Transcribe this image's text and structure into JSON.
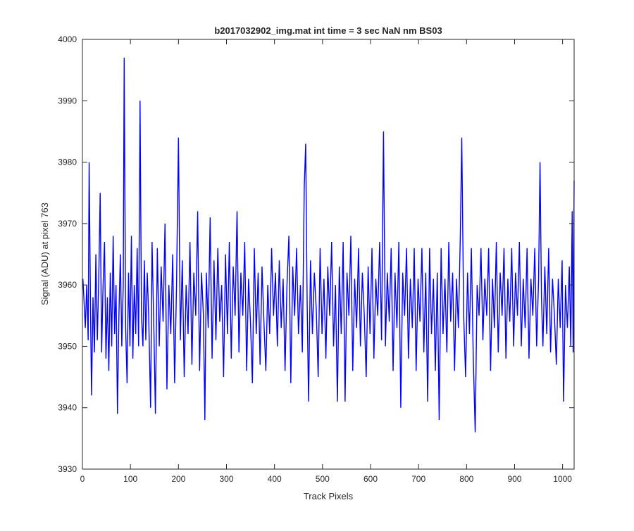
{
  "figure": {
    "title": "b2017032902_img.mat int time = 3 sec  NaN nm BS03",
    "xlabel": "Track Pixels",
    "ylabel": "Signal (ADU) at pixel 763"
  },
  "chart_data": {
    "type": "line",
    "title": "b2017032902_img.mat int time = 3 sec  NaN nm BS03",
    "xlabel": "Track Pixels",
    "ylabel": "Signal (ADU) at pixel 763",
    "xlim": [
      0,
      1024
    ],
    "ylim": [
      3930,
      4000
    ],
    "xticks": [
      0,
      100,
      200,
      300,
      400,
      500,
      600,
      700,
      800,
      900,
      1000
    ],
    "yticks": [
      3930,
      3940,
      3950,
      3960,
      3970,
      3980,
      3990,
      4000
    ],
    "grid": false,
    "legend": "none",
    "series": [
      {
        "color": "#0000ff",
        "x_start": 1,
        "x_step": 1,
        "points": [
          [
            1,
            3961
          ],
          [
            3,
            3958
          ],
          [
            6,
            3953
          ],
          [
            9,
            3960
          ],
          [
            12,
            3951
          ],
          [
            14,
            3980
          ],
          [
            17,
            3955
          ],
          [
            19,
            3942
          ],
          [
            22,
            3958
          ],
          [
            25,
            3949
          ],
          [
            28,
            3965
          ],
          [
            31,
            3951
          ],
          [
            34,
            3961
          ],
          [
            37,
            3975
          ],
          [
            40,
            3949
          ],
          [
            43,
            3960
          ],
          [
            46,
            3967
          ],
          [
            49,
            3948
          ],
          [
            52,
            3958
          ],
          [
            55,
            3946
          ],
          [
            58,
            3962
          ],
          [
            61,
            3950
          ],
          [
            64,
            3968
          ],
          [
            67,
            3952
          ],
          [
            70,
            3960
          ],
          [
            73,
            3939
          ],
          [
            76,
            3955
          ],
          [
            79,
            3965
          ],
          [
            82,
            3950
          ],
          [
            85,
            3960
          ],
          [
            87,
            3997
          ],
          [
            90,
            3953
          ],
          [
            93,
            3944
          ],
          [
            96,
            3962
          ],
          [
            99,
            3950
          ],
          [
            102,
            3968
          ],
          [
            105,
            3948
          ],
          [
            108,
            3960
          ],
          [
            111,
            3952
          ],
          [
            114,
            3966
          ],
          [
            117,
            3950
          ],
          [
            120,
            3990
          ],
          [
            123,
            3955
          ],
          [
            126,
            3950
          ],
          [
            129,
            3964
          ],
          [
            132,
            3951
          ],
          [
            135,
            3962
          ],
          [
            138,
            3955
          ],
          [
            142,
            3940
          ],
          [
            145,
            3967
          ],
          [
            149,
            3952
          ],
          [
            152,
            3939
          ],
          [
            156,
            3966
          ],
          [
            160,
            3950
          ],
          [
            164,
            3963
          ],
          [
            168,
            3954
          ],
          [
            172,
            3970
          ],
          [
            176,
            3943
          ],
          [
            180,
            3960
          ],
          [
            184,
            3952
          ],
          [
            188,
            3965
          ],
          [
            192,
            3944
          ],
          [
            196,
            3960
          ],
          [
            200,
            3984
          ],
          [
            204,
            3951
          ],
          [
            208,
            3964
          ],
          [
            212,
            3945
          ],
          [
            216,
            3960
          ],
          [
            220,
            3952
          ],
          [
            224,
            3967
          ],
          [
            228,
            3947
          ],
          [
            232,
            3962
          ],
          [
            236,
            3955
          ],
          [
            240,
            3972
          ],
          [
            244,
            3946
          ],
          [
            248,
            3962
          ],
          [
            252,
            3955
          ],
          [
            255,
            3938
          ],
          [
            258,
            3962
          ],
          [
            262,
            3953
          ],
          [
            266,
            3971
          ],
          [
            270,
            3948
          ],
          [
            274,
            3964
          ],
          [
            278,
            3951
          ],
          [
            282,
            3966
          ],
          [
            286,
            3954
          ],
          [
            290,
            3960
          ],
          [
            294,
            3945
          ],
          [
            298,
            3965
          ],
          [
            302,
            3952
          ],
          [
            306,
            3967
          ],
          [
            310,
            3948
          ],
          [
            314,
            3963
          ],
          [
            318,
            3955
          ],
          [
            322,
            3972
          ],
          [
            326,
            3949
          ],
          [
            330,
            3962
          ],
          [
            334,
            3955
          ],
          [
            338,
            3967
          ],
          [
            342,
            3946
          ],
          [
            346,
            3961
          ],
          [
            350,
            3954
          ],
          [
            354,
            3944
          ],
          [
            358,
            3966
          ],
          [
            362,
            3952
          ],
          [
            366,
            3962
          ],
          [
            370,
            3947
          ],
          [
            374,
            3963
          ],
          [
            378,
            3954
          ],
          [
            382,
            3946
          ],
          [
            386,
            3960
          ],
          [
            390,
            3952
          ],
          [
            394,
            3966
          ],
          [
            398,
            3955
          ],
          [
            402,
            3962
          ],
          [
            406,
            3950
          ],
          [
            410,
            3964
          ],
          [
            414,
            3953
          ],
          [
            418,
            3961
          ],
          [
            422,
            3946
          ],
          [
            426,
            3960
          ],
          [
            430,
            3968
          ],
          [
            434,
            3944
          ],
          [
            438,
            3963
          ],
          [
            442,
            3955
          ],
          [
            446,
            3966
          ],
          [
            450,
            3952
          ],
          [
            454,
            3960
          ],
          [
            458,
            3949
          ],
          [
            462,
            3976
          ],
          [
            465,
            3983
          ],
          [
            468,
            3957
          ],
          [
            471,
            3941
          ],
          [
            475,
            3964
          ],
          [
            479,
            3952
          ],
          [
            483,
            3962
          ],
          [
            487,
            3956
          ],
          [
            491,
            3945
          ],
          [
            495,
            3966
          ],
          [
            499,
            3952
          ],
          [
            503,
            3961
          ],
          [
            507,
            3948
          ],
          [
            511,
            3963
          ],
          [
            515,
            3955
          ],
          [
            519,
            3967
          ],
          [
            523,
            3950
          ],
          [
            527,
            3960
          ],
          [
            531,
            3941
          ],
          [
            535,
            3963
          ],
          [
            539,
            3952
          ],
          [
            543,
            3967
          ],
          [
            547,
            3941
          ],
          [
            551,
            3962
          ],
          [
            555,
            3955
          ],
          [
            559,
            3968
          ],
          [
            563,
            3946
          ],
          [
            567,
            3961
          ],
          [
            571,
            3953
          ],
          [
            575,
            3966
          ],
          [
            579,
            3950
          ],
          [
            583,
            3962
          ],
          [
            587,
            3955
          ],
          [
            591,
            3945
          ],
          [
            595,
            3963
          ],
          [
            599,
            3952
          ],
          [
            603,
            3966
          ],
          [
            607,
            3948
          ],
          [
            611,
            3961
          ],
          [
            615,
            3955
          ],
          [
            619,
            3967
          ],
          [
            623,
            3951
          ],
          [
            627,
            3985
          ],
          [
            631,
            3950
          ],
          [
            635,
            3962
          ],
          [
            639,
            3954
          ],
          [
            643,
            3966
          ],
          [
            647,
            3946
          ],
          [
            651,
            3962
          ],
          [
            655,
            3953
          ],
          [
            659,
            3967
          ],
          [
            663,
            3940
          ],
          [
            667,
            3962
          ],
          [
            671,
            3955
          ],
          [
            675,
            3966
          ],
          [
            679,
            3948
          ],
          [
            683,
            3961
          ],
          [
            687,
            3953
          ],
          [
            691,
            3966
          ],
          [
            695,
            3946
          ],
          [
            699,
            3961
          ],
          [
            703,
            3954
          ],
          [
            707,
            3966
          ],
          [
            711,
            3949
          ],
          [
            715,
            3962
          ],
          [
            719,
            3941
          ],
          [
            723,
            3966
          ],
          [
            727,
            3952
          ],
          [
            731,
            3961
          ],
          [
            735,
            3946
          ],
          [
            739,
            3962
          ],
          [
            743,
            3938
          ],
          [
            747,
            3966
          ],
          [
            751,
            3952
          ],
          [
            755,
            3961
          ],
          [
            759,
            3949
          ],
          [
            763,
            3967
          ],
          [
            767,
            3954
          ],
          [
            771,
            3962
          ],
          [
            775,
            3946
          ],
          [
            779,
            3961
          ],
          [
            783,
            3953
          ],
          [
            787,
            3968
          ],
          [
            790,
            3984
          ],
          [
            794,
            3955
          ],
          [
            798,
            3945
          ],
          [
            802,
            3962
          ],
          [
            806,
            3952
          ],
          [
            810,
            3966
          ],
          [
            814,
            3948
          ],
          [
            818,
            3936
          ],
          [
            822,
            3960
          ],
          [
            826,
            3955
          ],
          [
            830,
            3966
          ],
          [
            834,
            3951
          ],
          [
            838,
            3961
          ],
          [
            842,
            3955
          ],
          [
            846,
            3966
          ],
          [
            850,
            3946
          ],
          [
            854,
            3961
          ],
          [
            858,
            3953
          ],
          [
            862,
            3967
          ],
          [
            866,
            3949
          ],
          [
            870,
            3962
          ],
          [
            874,
            3955
          ],
          [
            878,
            3966
          ],
          [
            882,
            3948
          ],
          [
            886,
            3961
          ],
          [
            890,
            3954
          ],
          [
            894,
            3966
          ],
          [
            898,
            3950
          ],
          [
            902,
            3962
          ],
          [
            906,
            3955
          ],
          [
            910,
            3967
          ],
          [
            914,
            3950
          ],
          [
            918,
            3961
          ],
          [
            922,
            3953
          ],
          [
            926,
            3966
          ],
          [
            930,
            3948
          ],
          [
            934,
            3961
          ],
          [
            938,
            3955
          ],
          [
            942,
            3966
          ],
          [
            946,
            3950
          ],
          [
            950,
            3961
          ],
          [
            953,
            3980
          ],
          [
            956,
            3958
          ],
          [
            959,
            3950
          ],
          [
            963,
            3963
          ],
          [
            967,
            3952
          ],
          [
            971,
            3966
          ],
          [
            975,
            3949
          ],
          [
            979,
            3961
          ],
          [
            983,
            3955
          ],
          [
            987,
            3947
          ],
          [
            991,
            3961
          ],
          [
            995,
            3953
          ],
          [
            999,
            3964
          ],
          [
            1002,
            3941
          ],
          [
            1006,
            3960
          ],
          [
            1010,
            3953
          ],
          [
            1014,
            3963
          ],
          [
            1017,
            3950
          ],
          [
            1020,
            3972
          ],
          [
            1022,
            3949
          ],
          [
            1024,
            3977
          ]
        ]
      }
    ]
  }
}
